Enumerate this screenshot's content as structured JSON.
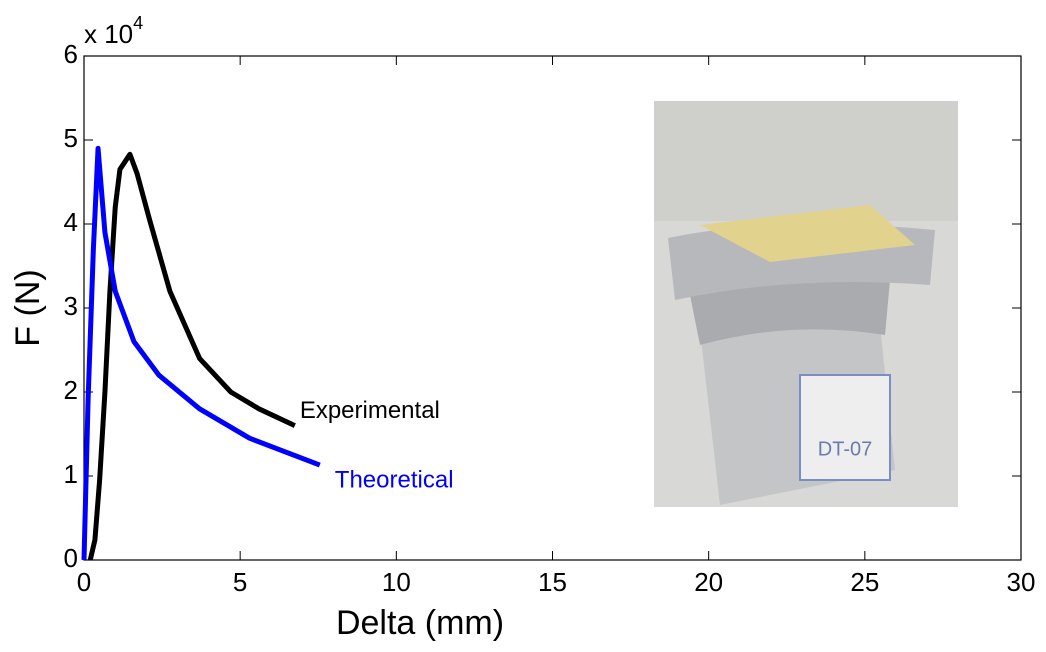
{
  "chart_data": {
    "type": "line",
    "x_label": "Delta (mm)",
    "y_label": "F (N)",
    "y_multiplier": {
      "base": "x 10",
      "exponent": "4"
    },
    "xlim": [
      0,
      30
    ],
    "xticks": [
      0,
      5,
      10,
      15,
      20,
      25,
      30
    ],
    "ylim": [
      0,
      6
    ],
    "yticks": [
      0,
      1,
      2,
      3,
      4,
      5,
      6
    ],
    "grid": false,
    "photo_label": "DT-07",
    "series": [
      {
        "name": "Experimental",
        "color": "#000000",
        "x": [
          0.2,
          0.35,
          0.5,
          0.67,
          0.83,
          1.0,
          1.15,
          1.47,
          1.7,
          2.1,
          2.75,
          3.7,
          4.7,
          5.6,
          6.75
        ],
        "values": [
          0,
          0.24,
          0.95,
          2.0,
          3.2,
          4.2,
          4.65,
          4.83,
          4.6,
          4.05,
          3.2,
          2.4,
          2.0,
          1.8,
          1.6
        ]
      },
      {
        "name": "Theoretical",
        "color": "#0000ff",
        "x": [
          0,
          0.13,
          0.3,
          0.45,
          0.67,
          1.0,
          1.6,
          2.4,
          3.7,
          5.3,
          7.55
        ],
        "values": [
          0,
          1.9,
          3.7,
          4.9,
          3.9,
          3.2,
          2.6,
          2.2,
          1.8,
          1.45,
          1.13
        ]
      }
    ]
  }
}
